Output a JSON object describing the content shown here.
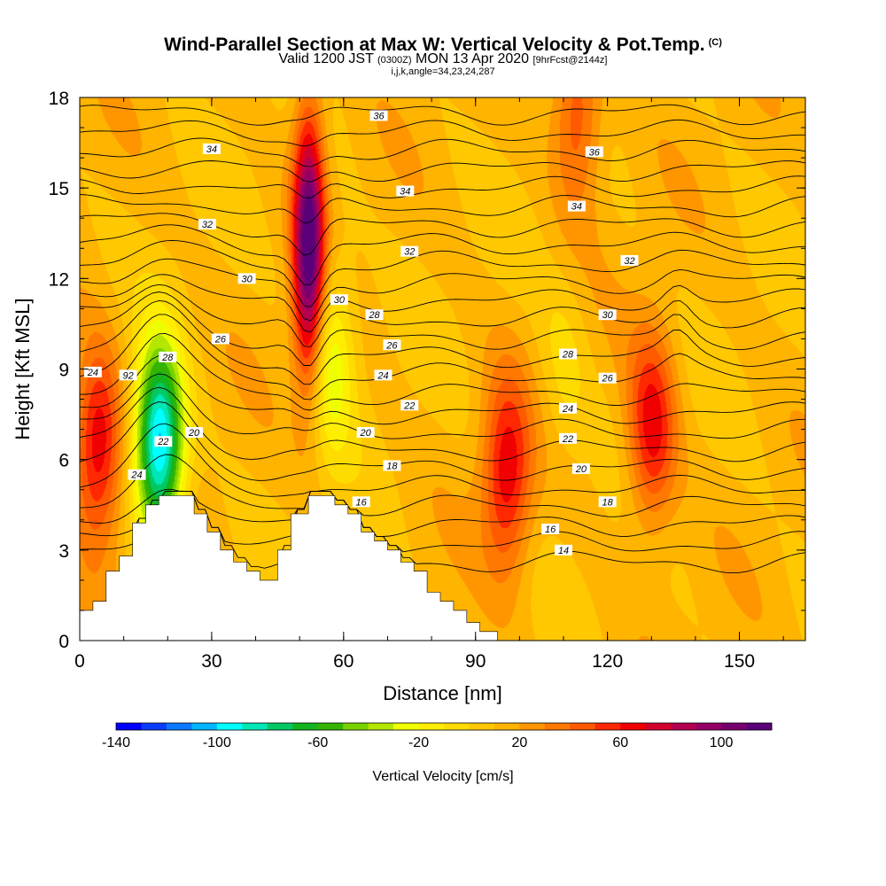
{
  "title": {
    "main": "Wind-Parallel Section at Max W: Vertical Velocity & Pot.Temp.",
    "main_units": "(C)",
    "valid_prefix": "Valid 1200 JST",
    "valid_zulu": "(0300Z)",
    "valid_date": "MON 13 Apr 2020",
    "forecast": "[9hrFcst@2144z]",
    "indices": "i,j,k,angle=34,23,24,287"
  },
  "chart_data": {
    "type": "heatmap",
    "xlabel": "Distance [nm]",
    "ylabel": "Height [Kft MSL]",
    "xlim": [
      0,
      165
    ],
    "ylim": [
      0,
      18
    ],
    "x_ticks": [
      "0",
      "30",
      "60",
      "90",
      "120",
      "150"
    ],
    "y_ticks": [
      "0",
      "3",
      "6",
      "9",
      "12",
      "15",
      "18"
    ],
    "colorbar": {
      "title": "Vertical Velocity [cm/s]",
      "range": [
        -140,
        120
      ],
      "tick_labels": [
        "-140",
        "-100",
        "-60",
        "-20",
        "20",
        "60",
        "100"
      ],
      "colors": [
        "#0000ff",
        "#0a3cff",
        "#0a78ff",
        "#00b4ff",
        "#00ffff",
        "#00e6b4",
        "#00c864",
        "#14b41e",
        "#32b400",
        "#78d200",
        "#b4e600",
        "#f0ff00",
        "#ffee00",
        "#ffdc00",
        "#ffc800",
        "#ffb400",
        "#ff9600",
        "#ff7800",
        "#ff5a00",
        "#ff2800",
        "#f00000",
        "#d2002d",
        "#b40050",
        "#960064",
        "#78006e",
        "#5a0078"
      ]
    },
    "vertical_velocity_features": [
      {
        "type": "updraft",
        "x": 4,
        "z": 6.5,
        "peak": 60
      },
      {
        "type": "downdraft",
        "x": 18,
        "z": 6.5,
        "peak": -120
      },
      {
        "type": "updraft",
        "x": 52,
        "z": 13,
        "peak": 110
      },
      {
        "type": "downdraft",
        "x": 57,
        "z": 9.5,
        "peak": -40
      },
      {
        "type": "updraft",
        "x": 97,
        "z": 5.5,
        "peak": 55
      },
      {
        "type": "updraft",
        "x": 130,
        "z": 7,
        "peak": 55
      },
      {
        "type": "updraft",
        "x": 113,
        "z": 17.5,
        "peak": 40
      },
      {
        "type": "downdraft",
        "x": 110,
        "z": 9,
        "peak": -15
      }
    ],
    "terrain_kft": [
      {
        "x": 0,
        "z": 1.0
      },
      {
        "x": 3,
        "z": 1.0
      },
      {
        "x": 3,
        "z": 1.3
      },
      {
        "x": 6,
        "z": 1.3
      },
      {
        "x": 6,
        "z": 2.3
      },
      {
        "x": 9,
        "z": 2.3
      },
      {
        "x": 9,
        "z": 2.8
      },
      {
        "x": 12,
        "z": 2.8
      },
      {
        "x": 12,
        "z": 3.9
      },
      {
        "x": 15,
        "z": 3.9
      },
      {
        "x": 15,
        "z": 4.5
      },
      {
        "x": 18,
        "z": 4.5
      },
      {
        "x": 18,
        "z": 4.8
      },
      {
        "x": 26,
        "z": 4.8
      },
      {
        "x": 26,
        "z": 4.2
      },
      {
        "x": 29,
        "z": 4.2
      },
      {
        "x": 29,
        "z": 3.6
      },
      {
        "x": 32,
        "z": 3.6
      },
      {
        "x": 32,
        "z": 3.0
      },
      {
        "x": 35,
        "z": 3.0
      },
      {
        "x": 35,
        "z": 2.6
      },
      {
        "x": 38,
        "z": 2.6
      },
      {
        "x": 38,
        "z": 2.3
      },
      {
        "x": 41,
        "z": 2.3
      },
      {
        "x": 41,
        "z": 2.0
      },
      {
        "x": 45,
        "z": 2.0
      },
      {
        "x": 45,
        "z": 3.0
      },
      {
        "x": 48,
        "z": 3.0
      },
      {
        "x": 48,
        "z": 4.2
      },
      {
        "x": 52,
        "z": 4.2
      },
      {
        "x": 52,
        "z": 4.8
      },
      {
        "x": 58,
        "z": 4.8
      },
      {
        "x": 58,
        "z": 4.5
      },
      {
        "x": 61,
        "z": 4.5
      },
      {
        "x": 61,
        "z": 4.2
      },
      {
        "x": 64,
        "z": 4.2
      },
      {
        "x": 64,
        "z": 3.6
      },
      {
        "x": 67,
        "z": 3.6
      },
      {
        "x": 67,
        "z": 3.3
      },
      {
        "x": 70,
        "z": 3.3
      },
      {
        "x": 70,
        "z": 3.0
      },
      {
        "x": 73,
        "z": 3.0
      },
      {
        "x": 73,
        "z": 2.6
      },
      {
        "x": 76,
        "z": 2.6
      },
      {
        "x": 76,
        "z": 2.3
      },
      {
        "x": 79,
        "z": 2.3
      },
      {
        "x": 79,
        "z": 1.6
      },
      {
        "x": 82,
        "z": 1.6
      },
      {
        "x": 82,
        "z": 1.3
      },
      {
        "x": 85,
        "z": 1.3
      },
      {
        "x": 85,
        "z": 1.0
      },
      {
        "x": 88,
        "z": 1.0
      },
      {
        "x": 88,
        "z": 0.6
      },
      {
        "x": 91,
        "z": 0.6
      },
      {
        "x": 91,
        "z": 0.3
      },
      {
        "x": 95,
        "z": 0.3
      },
      {
        "x": 95,
        "z": 0.0
      },
      {
        "x": 165,
        "z": 0.0
      }
    ],
    "theta_contours": [
      {
        "level": "14",
        "label_x": 110,
        "label_z": 3.0
      },
      {
        "level": "16",
        "label_x": 64,
        "label_z": 4.6
      },
      {
        "level": "16",
        "label_x": 107,
        "label_z": 3.7
      },
      {
        "level": "18",
        "label_x": 71,
        "label_z": 5.8
      },
      {
        "level": "18",
        "label_x": 120,
        "label_z": 4.6
      },
      {
        "level": "20",
        "label_x": 26,
        "label_z": 6.9
      },
      {
        "level": "20",
        "label_x": 65,
        "label_z": 6.9
      },
      {
        "level": "20",
        "label_x": 114,
        "label_z": 5.7
      },
      {
        "level": "22",
        "label_x": 19,
        "label_z": 6.6
      },
      {
        "level": "22",
        "label_x": 75,
        "label_z": 7.8
      },
      {
        "level": "22",
        "label_x": 111,
        "label_z": 6.7
      },
      {
        "level": "24",
        "label_x": 3,
        "label_z": 8.9
      },
      {
        "level": "24",
        "label_x": 13,
        "label_z": 5.5
      },
      {
        "level": "24",
        "label_x": 69,
        "label_z": 8.8
      },
      {
        "level": "24",
        "label_x": 111,
        "label_z": 7.7
      },
      {
        "level": "26",
        "label_x": 32,
        "label_z": 10.0
      },
      {
        "level": "26",
        "label_x": 71,
        "label_z": 9.8
      },
      {
        "level": "26",
        "label_x": 120,
        "label_z": 8.7
      },
      {
        "level": "28",
        "label_x": 20,
        "label_z": 9.4
      },
      {
        "level": "28",
        "label_x": 67,
        "label_z": 10.8
      },
      {
        "level": "28",
        "label_x": 111,
        "label_z": 9.5
      },
      {
        "level": "30",
        "label_x": 38,
        "label_z": 12.0
      },
      {
        "level": "30",
        "label_x": 59,
        "label_z": 11.3
      },
      {
        "level": "30",
        "label_x": 120,
        "label_z": 10.8
      },
      {
        "level": "32",
        "label_x": 29,
        "label_z": 13.8
      },
      {
        "level": "32",
        "label_x": 75,
        "label_z": 12.9
      },
      {
        "level": "32",
        "label_x": 125,
        "label_z": 12.6
      },
      {
        "level": "34",
        "label_x": 30,
        "label_z": 16.3
      },
      {
        "level": "34",
        "label_x": 74,
        "label_z": 14.9
      },
      {
        "level": "34",
        "label_x": 113,
        "label_z": 14.4
      },
      {
        "level": "36",
        "label_x": 68,
        "label_z": 17.4
      },
      {
        "level": "36",
        "label_x": 117,
        "label_z": 16.2
      },
      {
        "level": "92",
        "label_x": 11,
        "label_z": 8.8
      }
    ]
  }
}
